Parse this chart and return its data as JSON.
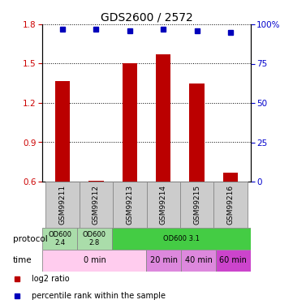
{
  "title": "GDS2600 / 2572",
  "samples": [
    "GSM99211",
    "GSM99212",
    "GSM99213",
    "GSM99214",
    "GSM99215",
    "GSM99216"
  ],
  "log2_ratios": [
    1.37,
    0.605,
    1.5,
    1.57,
    1.35,
    0.665
  ],
  "log2_base": 0.6,
  "percentile_ranks": [
    97,
    97,
    96,
    97,
    96,
    95
  ],
  "ylim_left": [
    0.6,
    1.8
  ],
  "ylim_right": [
    0,
    100
  ],
  "yticks_left": [
    0.6,
    0.9,
    1.2,
    1.5,
    1.8
  ],
  "yticks_right": [
    0,
    25,
    50,
    75,
    100
  ],
  "bar_color": "#bb0000",
  "dot_color": "#0000bb",
  "protocol_row": {
    "label": "protocol",
    "cells": [
      {
        "text": "OD600\n2.4",
        "colspan": 1,
        "color": "#aaddaa"
      },
      {
        "text": "OD600\n2.8",
        "colspan": 1,
        "color": "#aaddaa"
      },
      {
        "text": "OD600 3.1",
        "colspan": 4,
        "color": "#44cc44"
      }
    ]
  },
  "time_row": {
    "label": "time",
    "cells": [
      {
        "text": "0 min",
        "colspan": 3,
        "color": "#ffccee"
      },
      {
        "text": "20 min",
        "colspan": 1,
        "color": "#dd88dd"
      },
      {
        "text": "40 min",
        "colspan": 1,
        "color": "#dd88dd"
      },
      {
        "text": "60 min",
        "colspan": 1,
        "color": "#cc44cc"
      }
    ]
  },
  "legend_items": [
    {
      "color": "#bb0000",
      "label": "log2 ratio"
    },
    {
      "color": "#0000bb",
      "label": "percentile rank within the sample"
    }
  ],
  "tick_color_left": "#cc0000",
  "tick_color_right": "#0000cc"
}
